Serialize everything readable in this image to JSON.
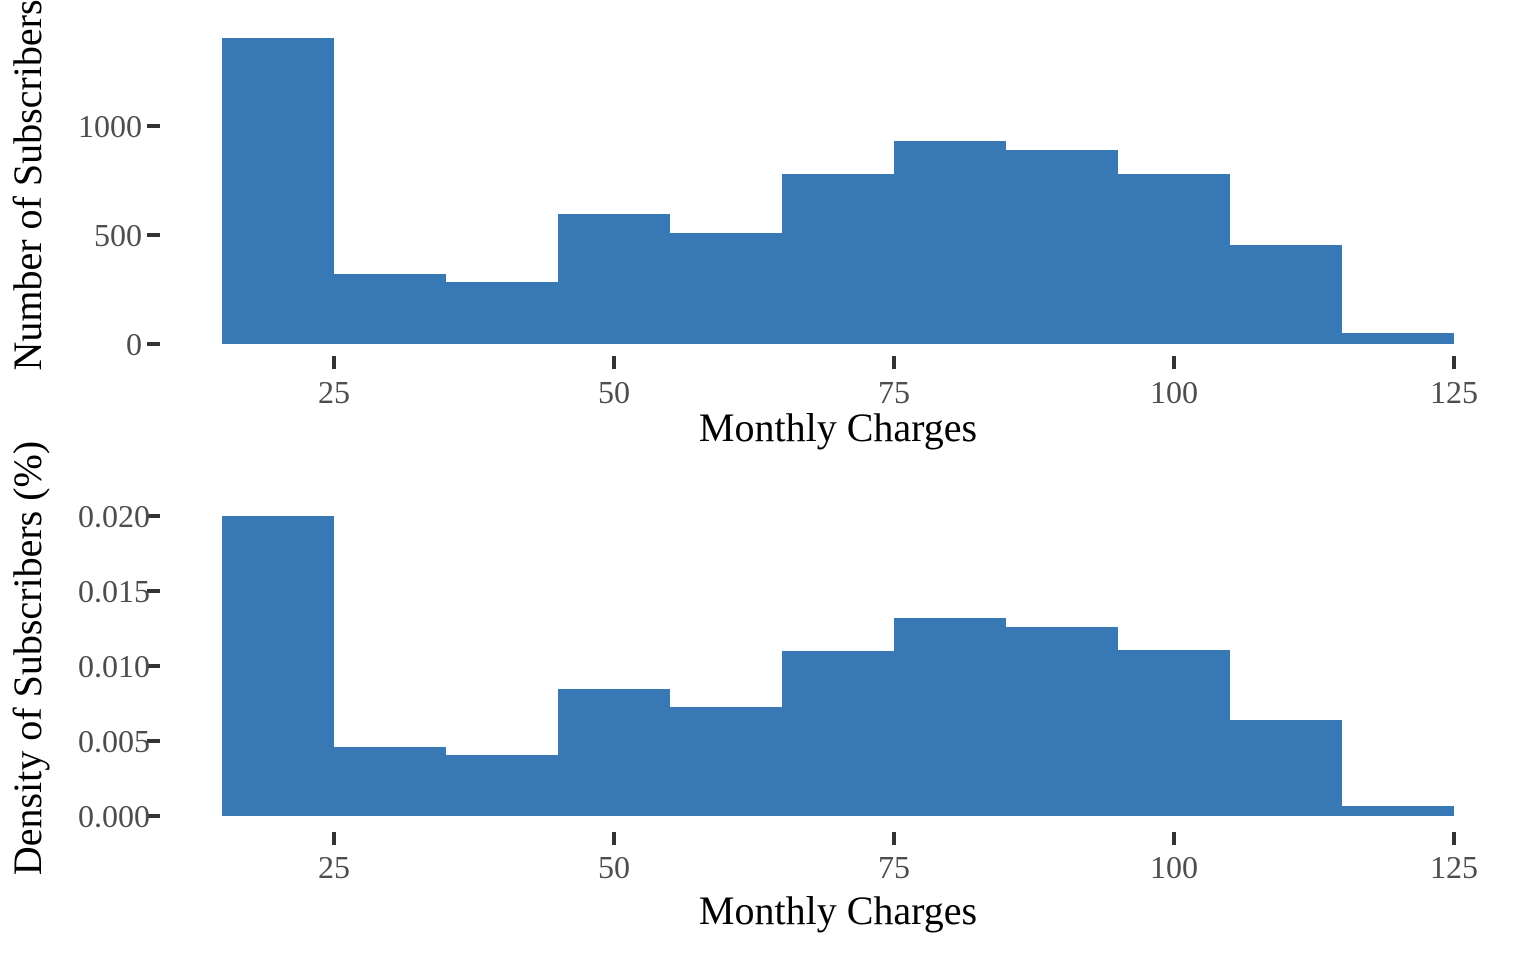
{
  "chart_data": [
    {
      "type": "bar",
      "subtype": "histogram",
      "title": "",
      "xlabel": "Monthly Charges",
      "ylabel": "Number of Subscribers",
      "bin_edges": [
        15,
        25,
        35,
        45,
        55,
        65,
        75,
        85,
        95,
        105,
        115,
        125
      ],
      "values": [
        1404,
        320,
        285,
        596,
        510,
        778,
        930,
        888,
        780,
        453,
        52
      ],
      "x_ticks": [
        25,
        50,
        75,
        100,
        125
      ],
      "x_tick_labels": [
        "25",
        "50",
        "75",
        "100",
        "125"
      ],
      "y_ticks": [
        0,
        500,
        1000
      ],
      "y_tick_labels": [
        "0",
        "500",
        "1000"
      ],
      "xlim": [
        9.5,
        130.5
      ],
      "ylim": [
        0,
        1475
      ],
      "grid": false,
      "legend": false,
      "bar_color": "#3778B5",
      "tick_color": "#333333",
      "tick_label_color": "#4d4d4d",
      "axis_title_color": "#000000",
      "background_color": "#ffffff"
    },
    {
      "type": "bar",
      "subtype": "histogram",
      "title": "",
      "xlabel": "Monthly Charges",
      "ylabel": "Density of Subscribers (%)",
      "bin_edges": [
        15,
        25,
        35,
        45,
        55,
        65,
        75,
        85,
        95,
        105,
        115,
        125
      ],
      "values": [
        0.02,
        0.0046,
        0.0041,
        0.0085,
        0.0073,
        0.011,
        0.0132,
        0.0126,
        0.0111,
        0.0064,
        0.0007
      ],
      "x_ticks": [
        25,
        50,
        75,
        100,
        125
      ],
      "x_tick_labels": [
        "25",
        "50",
        "75",
        "100",
        "125"
      ],
      "y_ticks": [
        0,
        0.005,
        0.01,
        0.015,
        0.02
      ],
      "y_tick_labels": [
        "0.000",
        "0.005",
        "0.010",
        "0.015",
        "0.020"
      ],
      "xlim": [
        9.5,
        130.5
      ],
      "ylim": [
        0,
        0.021
      ],
      "grid": false,
      "legend": false,
      "bar_color": "#3778B5",
      "tick_color": "#333333",
      "tick_label_color": "#4d4d4d",
      "axis_title_color": "#000000",
      "background_color": "#ffffff"
    }
  ]
}
